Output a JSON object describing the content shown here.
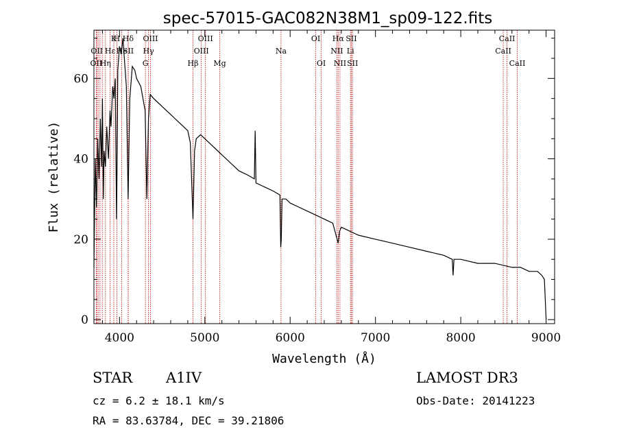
{
  "chart_data": {
    "type": "line",
    "title": "spec-57015-GAC082N38M1_sp09-122.fits",
    "xlabel": "Wavelength (Å)",
    "ylabel": "Flux (relative)",
    "xlim": [
      3700,
      9100
    ],
    "ylim": [
      -1,
      72
    ],
    "xticks": [
      4000,
      5000,
      6000,
      7000,
      8000,
      9000
    ],
    "xtick_labels": [
      "4000",
      "5000",
      "6000",
      "7000",
      "8000",
      "9000"
    ],
    "yticks": [
      0,
      20,
      40,
      60
    ],
    "ytick_labels": [
      "0",
      "20",
      "40",
      "60"
    ],
    "series": [
      {
        "name": "spectrum",
        "x": [
          3700,
          3715,
          3730,
          3745,
          3760,
          3775,
          3790,
          3800,
          3810,
          3820,
          3835,
          3850,
          3870,
          3889,
          3900,
          3920,
          3935,
          3950,
          3965,
          3970,
          3980,
          4000,
          4020,
          4040,
          4060,
          4080,
          4101,
          4120,
          4150,
          4180,
          4200,
          4250,
          4300,
          4320,
          4340,
          4360,
          4400,
          4450,
          4500,
          4550,
          4600,
          4650,
          4700,
          4750,
          4800,
          4830,
          4861,
          4880,
          4900,
          4950,
          5000,
          5050,
          5100,
          5200,
          5300,
          5400,
          5500,
          5580,
          5590,
          5600,
          5700,
          5800,
          5880,
          5890,
          5896,
          5905,
          5950,
          6000,
          6100,
          6200,
          6300,
          6400,
          6500,
          6563,
          6580,
          6600,
          6700,
          6800,
          7000,
          7200,
          7400,
          7600,
          7800,
          7900,
          7910,
          7920,
          8000,
          8200,
          8400,
          8600,
          8700,
          8800,
          8900,
          8950,
          8980,
          9000
        ],
        "values": [
          13,
          40,
          28,
          45,
          35,
          50,
          38,
          55,
          30,
          42,
          38,
          48,
          40,
          52,
          48,
          58,
          55,
          60,
          25,
          35,
          62,
          68,
          66,
          70,
          64,
          58,
          30,
          55,
          63,
          62,
          60,
          58,
          52,
          30,
          50,
          56,
          55,
          54,
          53,
          52,
          51,
          50,
          49,
          48,
          47,
          44,
          25,
          42,
          45,
          46,
          45,
          44,
          43,
          41,
          39,
          37,
          36,
          35,
          47,
          34,
          33,
          32,
          31,
          18,
          20,
          30,
          30,
          29,
          28,
          27,
          26,
          25,
          24,
          19,
          22,
          23,
          22,
          21,
          20,
          19,
          18,
          17,
          16,
          15,
          11,
          15,
          15,
          14,
          14,
          13,
          13,
          12,
          12,
          11,
          10,
          0
        ]
      }
    ],
    "lines": [
      {
        "wave": 3727,
        "label": "OII",
        "row": 2
      },
      {
        "wave": 3734,
        "label": "OII",
        "row": 1
      },
      {
        "wave": 3750,
        "label": "",
        "row": 0
      },
      {
        "wave": 3771,
        "label": "",
        "row": 0
      },
      {
        "wave": 3798,
        "label": "",
        "row": 0
      },
      {
        "wave": 3835,
        "label": "Hη",
        "row": 2
      },
      {
        "wave": 3889,
        "label": "Hε",
        "row": 1
      },
      {
        "wave": 3933,
        "label": "K",
        "row": 0
      },
      {
        "wave": 3969,
        "label": "H",
        "row": 0
      },
      {
        "wave": 4026,
        "label": "He",
        "row": 1
      },
      {
        "wave": 4101,
        "label": "Hδ",
        "row": 0
      },
      {
        "wave": 4102,
        "label": "SII",
        "row": 1
      },
      {
        "wave": 4304,
        "label": "G",
        "row": 2
      },
      {
        "wave": 4340,
        "label": "Hγ",
        "row": 1
      },
      {
        "wave": 4363,
        "label": "OIII",
        "row": 0
      },
      {
        "wave": 4861,
        "label": "Hβ",
        "row": 2
      },
      {
        "wave": 4959,
        "label": "OIII",
        "row": 1
      },
      {
        "wave": 5007,
        "label": "OIII",
        "row": 0
      },
      {
        "wave": 5175,
        "label": "Mg",
        "row": 2
      },
      {
        "wave": 5893,
        "label": "Na",
        "row": 1
      },
      {
        "wave": 6300,
        "label": "OI",
        "row": 0
      },
      {
        "wave": 6364,
        "label": "OI",
        "row": 2
      },
      {
        "wave": 6548,
        "label": "NII",
        "row": 1
      },
      {
        "wave": 6563,
        "label": "Hα",
        "row": 0
      },
      {
        "wave": 6584,
        "label": "NII",
        "row": 2
      },
      {
        "wave": 6707,
        "label": "Li",
        "row": 1
      },
      {
        "wave": 6717,
        "label": "SII",
        "row": 0
      },
      {
        "wave": 6731,
        "label": "SII",
        "row": 2
      },
      {
        "wave": 8498,
        "label": "CaII",
        "row": 1
      },
      {
        "wave": 8542,
        "label": "CaII",
        "row": 0
      },
      {
        "wave": 8662,
        "label": "CaII",
        "row": 2
      }
    ]
  },
  "info": {
    "class": "STAR",
    "subclass": "A1IV",
    "survey": "LAMOST DR3",
    "cz": "cz = 6.2 ± 18.1 km/s",
    "obs_date": "Obs-Date: 20141223",
    "coords": "RA =  83.63784, DEC =  39.21806"
  }
}
